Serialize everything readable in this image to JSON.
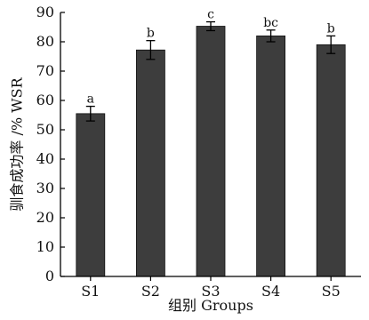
{
  "chart_data": {
    "type": "bar",
    "categories": [
      "S1",
      "S2",
      "S3",
      "S4",
      "S5"
    ],
    "values": [
      55.5,
      77.2,
      85.3,
      82.0,
      79.0
    ],
    "errors": [
      2.5,
      3.2,
      1.5,
      2.0,
      3.0
    ],
    "significance": [
      "a",
      "b",
      "c",
      "bc",
      "b"
    ],
    "yticks": [
      0,
      10,
      20,
      30,
      40,
      50,
      60,
      70,
      80,
      90
    ],
    "ylim": [
      0,
      90
    ],
    "xlabel": "组别 Groups",
    "ylabel": "驯食成功率 /% WSR",
    "title": "",
    "grid": false,
    "colors": {
      "bar": "#3d3d3d",
      "axis": "#000000"
    }
  }
}
